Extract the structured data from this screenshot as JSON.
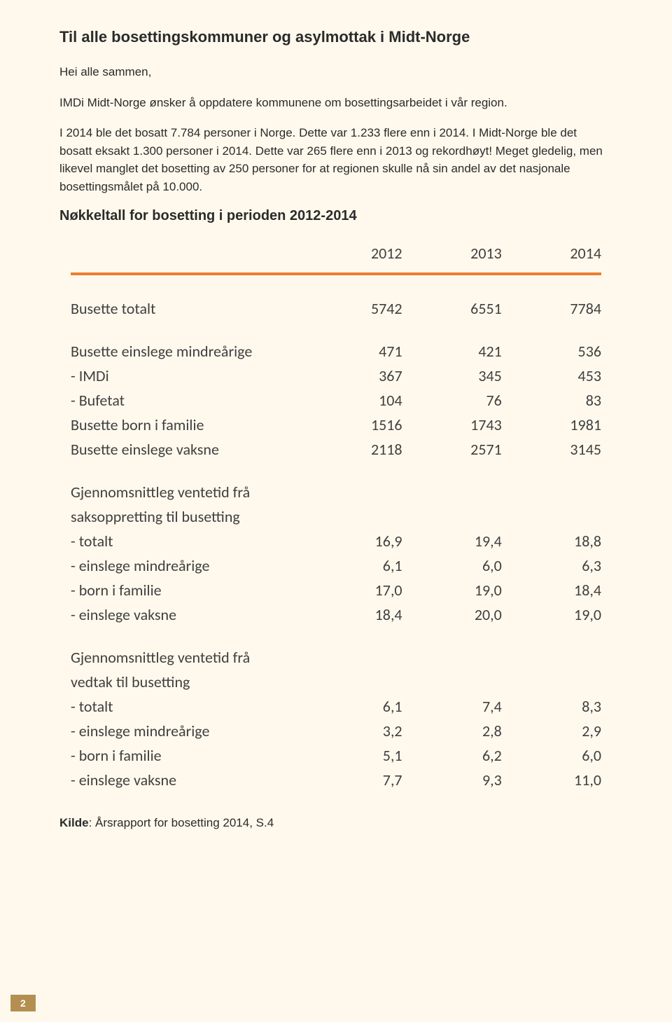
{
  "page": {
    "title": "Til alle bosettingskommuner og asylmottak i Midt-Norge",
    "intro": "Hei alle sammen,",
    "para1": "IMDi Midt-Norge ønsker å oppdatere kommunene om bosettingsarbeidet i vår region.",
    "para2": "I 2014 ble det bosatt 7.784 personer i Norge. Dette var 1.233 flere enn i 2014. I Midt-Norge ble det bosatt eksakt 1.300 personer i 2014. Dette var 265 flere enn i 2013 og rekordhøyt! Meget gledelig, men likevel manglet det bosetting av 250 personer for at regionen skulle nå sin andel av det nasjonale bosettingsmålet på 10.000.",
    "section_heading": "Nøkkeltall for bosetting i perioden 2012-2014",
    "source_label": "Kilde",
    "source_text": ": Årsrapport for bosetting 2014, S.4",
    "page_number": "2",
    "background_color": "#fff9ed",
    "divider_color": "#ed7d31",
    "page_box_bg": "#b58f4f"
  },
  "table": {
    "type": "table",
    "header_font_color": "#404040",
    "body_font_color": "#404040",
    "fontsize": 22,
    "columns": [
      "",
      "2012",
      "2013",
      "2014"
    ],
    "column_align": [
      "left",
      "right",
      "right",
      "right"
    ],
    "column_widths": [
      "46%",
      "18%",
      "18%",
      "18%"
    ],
    "groups": [
      {
        "rows": [
          {
            "label": "Busette totalt",
            "values": [
              "5742",
              "6551",
              "7784"
            ]
          }
        ]
      },
      {
        "rows": [
          {
            "label": "Busette einslege mindreårige",
            "values": [
              "471",
              "421",
              "536"
            ]
          },
          {
            "label": "- IMDi",
            "values": [
              "367",
              "345",
              "453"
            ]
          },
          {
            "label": "- Bufetat",
            "values": [
              "104",
              "76",
              "83"
            ]
          },
          {
            "label": "Busette born i familie",
            "values": [
              "1516",
              "1743",
              "1981"
            ]
          },
          {
            "label": "Busette einslege vaksne",
            "values": [
              "2118",
              "2571",
              "3145"
            ]
          }
        ]
      },
      {
        "rows": [
          {
            "label": "Gjennomsnittleg ventetid frå",
            "values": [
              "",
              "",
              ""
            ]
          },
          {
            "label": "saksoppretting til busetting",
            "values": [
              "",
              "",
              ""
            ]
          },
          {
            "label": "- totalt",
            "values": [
              "16,9",
              "19,4",
              "18,8"
            ]
          },
          {
            "label": "- einslege mindreårige",
            "values": [
              "6,1",
              "6,0",
              "6,3"
            ]
          },
          {
            "label": "- born i familie",
            "values": [
              "17,0",
              "19,0",
              "18,4"
            ]
          },
          {
            "label": "- einslege vaksne",
            "values": [
              "18,4",
              "20,0",
              "19,0"
            ]
          }
        ]
      },
      {
        "rows": [
          {
            "label": "Gjennomsnittleg ventetid frå",
            "values": [
              "",
              "",
              ""
            ]
          },
          {
            "label": "vedtak til busetting",
            "values": [
              "",
              "",
              ""
            ]
          },
          {
            "label": " - totalt",
            "values": [
              "6,1",
              "7,4",
              "8,3"
            ]
          },
          {
            "label": " - einslege mindreårige",
            "values": [
              "3,2",
              "2,8",
              "2,9"
            ]
          },
          {
            "label": " - born i familie",
            "values": [
              "5,1",
              "6,2",
              "6,0"
            ]
          },
          {
            "label": " - einslege vaksne",
            "values": [
              "7,7",
              "9,3",
              "11,0"
            ]
          }
        ]
      }
    ]
  }
}
